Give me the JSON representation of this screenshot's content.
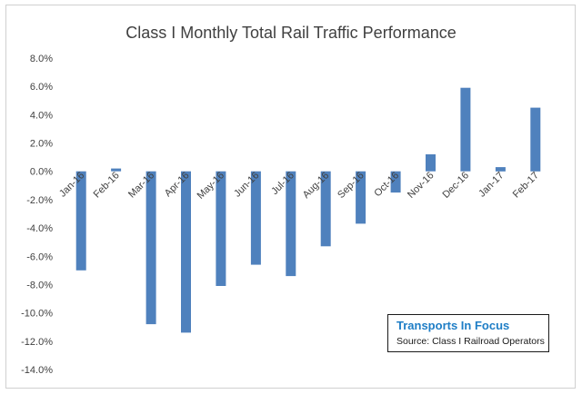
{
  "chart_data": {
    "type": "bar",
    "title": "Class I Monthly Total Rail Traffic Performance",
    "categories": [
      "Jan-16",
      "Feb-16",
      "Mar-16",
      "Apr-16",
      "May-16",
      "Jun-16",
      "Jul-16",
      "Aug-16",
      "Sep-16",
      "Oct-16",
      "Nov-16",
      "Dec-16",
      "Jan-17",
      "Feb-17"
    ],
    "values": [
      -7.0,
      0.2,
      -10.8,
      -11.4,
      -8.1,
      -6.6,
      -7.4,
      -5.3,
      -3.7,
      -1.5,
      1.2,
      5.9,
      0.3,
      4.5
    ],
    "ylim": [
      -14,
      8
    ],
    "yticks": [
      8,
      6,
      4,
      2,
      0,
      -2,
      -4,
      -6,
      -8,
      -10,
      -12,
      -14
    ],
    "ytick_labels": [
      "8.0%",
      "6.0%",
      "4.0%",
      "2.0%",
      "0.0%",
      "-2.0%",
      "-4.0%",
      "-6.0%",
      "-8.0%",
      "-10.0%",
      "-12.0%",
      "-14.0%"
    ],
    "bar_color": "#4f81bd",
    "grid": false,
    "xlabel": "",
    "ylabel": ""
  },
  "annotation": {
    "brand": "Transports  In Focus",
    "source": "Source: Class I Railroad Operators"
  }
}
